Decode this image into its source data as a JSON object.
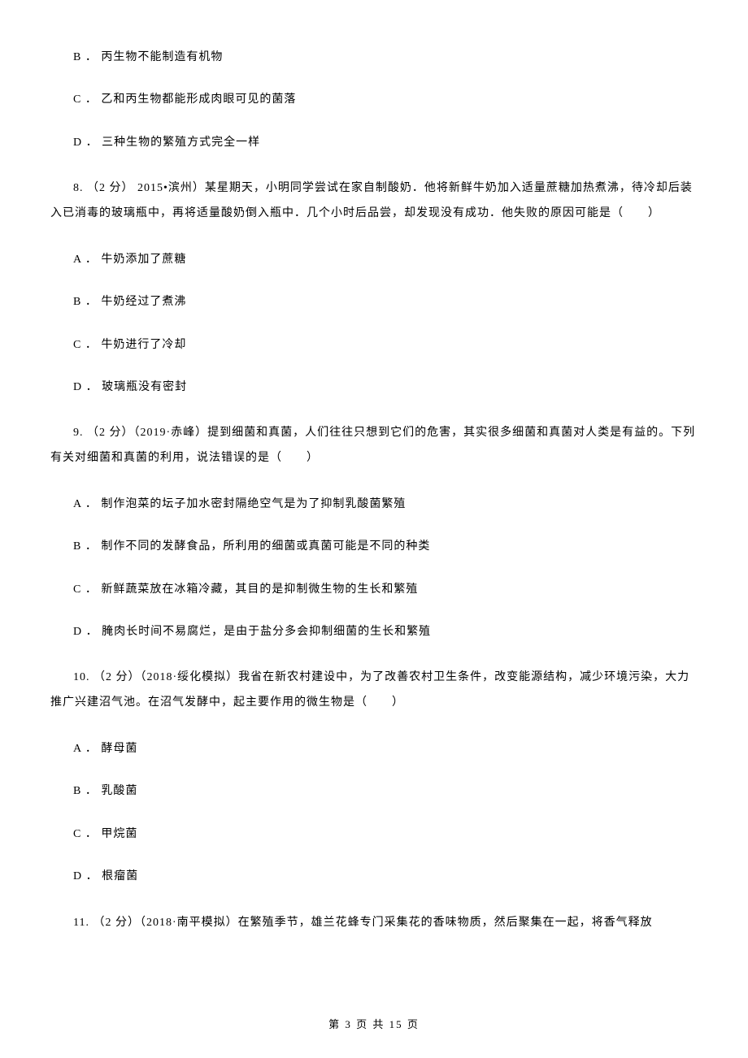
{
  "q7_options": {
    "b": "B ． 丙生物不能制造有机物",
    "c": "C ． 乙和丙生物都能形成肉眼可见的菌落",
    "d": "D ． 三种生物的繁殖方式完全一样"
  },
  "q8": {
    "stem": "8. （2 分） 2015•滨州）某星期天，小明同学尝试在家自制酸奶．他将新鲜牛奶加入适量蔗糖加热煮沸，待冷却后装入已消毒的玻璃瓶中，再将适量酸奶倒入瓶中．几个小时后品尝，却发现没有成功．他失败的原因可能是（　　）",
    "a": "A ． 牛奶添加了蔗糖",
    "b": "B ． 牛奶经过了煮沸",
    "c": "C ． 牛奶进行了冷却",
    "d": "D ． 玻璃瓶没有密封"
  },
  "q9": {
    "stem": "9. （2 分）（2019·赤峰）提到细菌和真菌，人们往往只想到它们的危害，其实很多细菌和真菌对人类是有益的。下列有关对细菌和真菌的利用，说法错误的是（　　）",
    "a": "A ． 制作泡菜的坛子加水密封隔绝空气是为了抑制乳酸菌繁殖",
    "b": "B ． 制作不同的发酵食品，所利用的细菌或真菌可能是不同的种类",
    "c": "C ． 新鲜蔬菜放在冰箱冷藏，其目的是抑制微生物的生长和繁殖",
    "d": "D ． 腌肉长时间不易腐烂，是由于盐分多会抑制细菌的生长和繁殖"
  },
  "q10": {
    "stem": "10. （2 分）（2018·绥化模拟）我省在新农村建设中，为了改善农村卫生条件，改变能源结构，减少环境污染，大力推广兴建沼气池。在沼气发酵中，起主要作用的微生物是（　　）",
    "a": "A ． 酵母菌",
    "b": "B ． 乳酸菌",
    "c": "C ． 甲烷菌",
    "d": "D ． 根瘤菌"
  },
  "q11": {
    "stem": "11. （2 分）（2018·南平模拟）在繁殖季节，雄兰花蜂专门采集花的香味物质，然后聚集在一起，将香气释放"
  },
  "footer": "第 3 页 共 15 页"
}
